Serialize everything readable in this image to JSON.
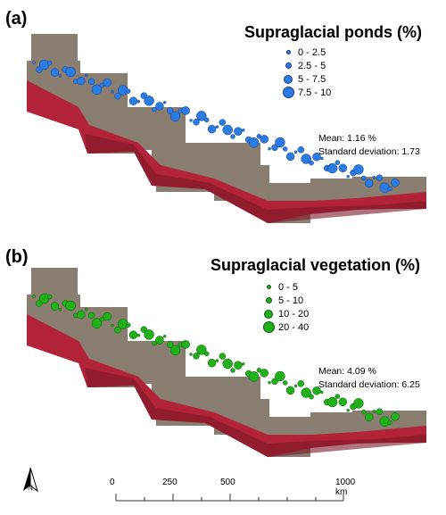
{
  "panel_a": {
    "label": "(a)",
    "legend_title": "Supraglacial ponds (%)",
    "legend_items": [
      "0 - 2.5",
      "2.5 - 5",
      "5 - 7.5",
      "7.5 - 10"
    ],
    "symbol_color": "#2a7be4",
    "stats_mean": "Mean: 1.16 %",
    "stats_sd": "Standard deviation: 1.73"
  },
  "panel_b": {
    "label": "(b)",
    "legend_title": "Supraglacial vegetation (%)",
    "legend_items": [
      "0 - 5",
      "5 - 10",
      "10 - 20",
      "20 - 40"
    ],
    "symbol_color": "#1fb01a",
    "stats_mean": "Mean: 4.09 %",
    "stats_sd": "Standard deviation: 6.25"
  },
  "scale_bar": {
    "labels": [
      "0",
      "250",
      "500",
      "1000 km"
    ]
  },
  "north_arrow": {
    "label": "N"
  },
  "colors": {
    "terrain_red": "#b2233a",
    "terrain_tan": "#8a7e70",
    "terrain_dark_red": "#7a1826"
  }
}
